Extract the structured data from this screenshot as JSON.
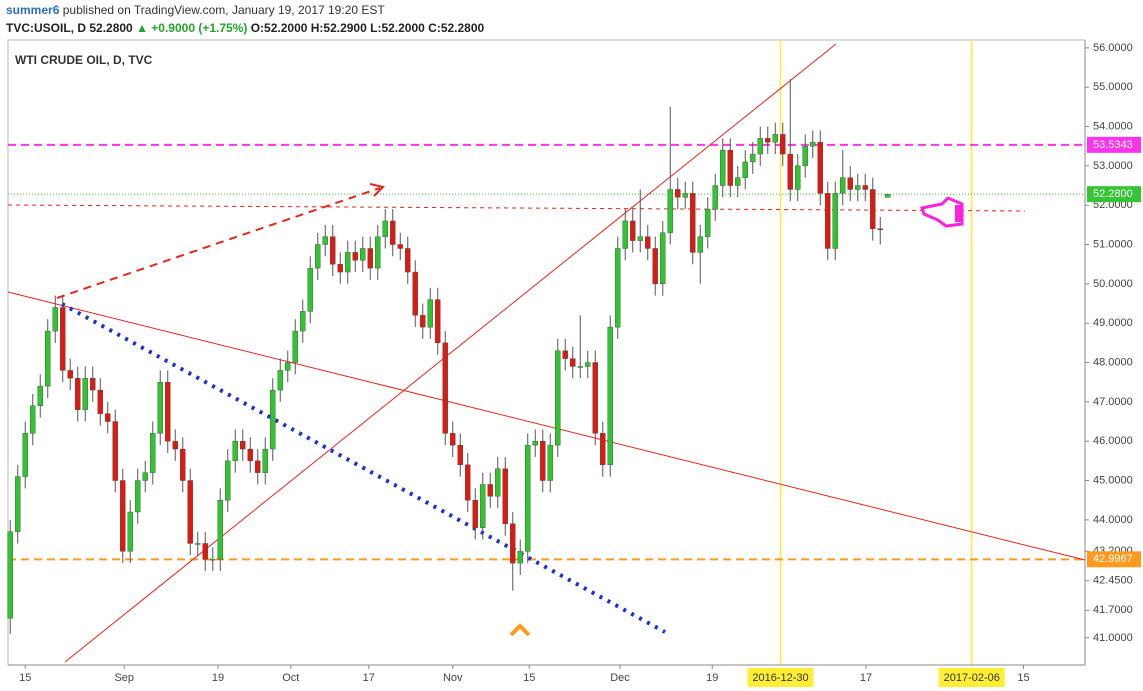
{
  "header": {
    "author": "summer6",
    "published": "published on TradingView.com, January 19, 2017 19:20 EST",
    "symbol": "TVC:USOIL, D",
    "price": "52.2800",
    "change": "▲ +0.9000 (+1.75%)",
    "ohlc": "O:52.2000 H:52.2900 L:52.2000 C:52.2800"
  },
  "chart_data": {
    "type": "candlestick",
    "title": "WTI CRUDE OIL, D, TVC",
    "up_color": "#2fc52f",
    "down_color": "#dd1a12",
    "x": [
      0,
      1,
      2,
      3,
      4,
      5,
      6,
      7,
      8,
      9,
      10,
      11,
      12,
      13,
      14,
      15,
      16,
      17,
      18,
      19,
      20,
      21,
      22,
      23,
      24,
      25,
      26,
      27,
      28,
      29,
      30,
      31,
      32,
      33,
      34,
      35,
      36,
      37,
      38,
      39,
      40,
      41,
      42,
      43,
      44,
      45,
      46,
      47,
      48,
      49,
      50,
      51,
      52,
      53,
      54,
      55,
      56,
      57,
      58,
      59,
      60,
      61,
      62,
      63,
      64,
      65,
      66,
      67,
      68,
      69,
      70,
      71,
      72,
      73,
      74,
      75,
      76,
      77,
      78,
      79,
      80,
      81,
      82,
      83,
      84,
      85,
      86,
      87,
      88,
      89,
      90,
      91,
      92,
      93,
      94,
      95,
      96,
      97,
      98,
      99,
      100,
      101,
      102,
      103,
      104,
      105,
      106,
      107,
      108,
      109,
      110,
      111,
      112,
      113,
      114,
      115,
      116,
      117
    ],
    "open": [
      41.5,
      43.7,
      45.1,
      46.2,
      46.9,
      47.4,
      48.8,
      49.4,
      47.8,
      47.6,
      46.8,
      47.6,
      47.3,
      46.7,
      46.5,
      45.0,
      43.2,
      44.2,
      45.0,
      45.2,
      46.2,
      47.5,
      46.0,
      45.8,
      45.0,
      43.4,
      43.4,
      43.0,
      43.0,
      44.5,
      45.5,
      46.0,
      45.8,
      45.5,
      45.2,
      45.8,
      47.3,
      47.8,
      48.0,
      48.8,
      49.3,
      50.4,
      51.0,
      51.2,
      50.5,
      50.3,
      50.8,
      50.6,
      50.9,
      50.4,
      51.2,
      51.6,
      51.0,
      50.9,
      50.3,
      49.2,
      48.9,
      49.6,
      48.5,
      46.2,
      45.9,
      45.4,
      44.5,
      43.8,
      44.9,
      44.6,
      45.3,
      43.9,
      42.9,
      43.2,
      45.9,
      46.0,
      45.0,
      45.9,
      48.3,
      48.1,
      47.9,
      47.9,
      48.0,
      46.2,
      45.4,
      48.9,
      50.9,
      51.6,
      51.1,
      51.2,
      50.9,
      50.0,
      51.3,
      52.4,
      52.2,
      52.3,
      50.8,
      51.2,
      51.9,
      52.5,
      53.4,
      52.5,
      52.7,
      53.1,
      53.3,
      53.7,
      53.6,
      53.8,
      53.3,
      52.4,
      53.0,
      53.5,
      53.6,
      52.3,
      50.9,
      52.3,
      52.7,
      52.4,
      52.5,
      52.4,
      51.4,
      52.2
    ],
    "high": [
      44.0,
      45.4,
      46.5,
      47.2,
      47.7,
      49.1,
      49.7,
      49.7,
      48.1,
      47.9,
      47.9,
      47.9,
      47.6,
      47.0,
      46.8,
      45.3,
      44.5,
      45.3,
      45.5,
      46.5,
      47.8,
      47.8,
      46.3,
      46.1,
      45.3,
      43.7,
      43.7,
      43.3,
      44.8,
      45.8,
      46.3,
      46.3,
      46.1,
      45.8,
      46.1,
      47.6,
      48.1,
      48.3,
      49.1,
      49.6,
      50.7,
      51.3,
      51.5,
      51.5,
      50.8,
      51.1,
      51.1,
      51.2,
      51.2,
      51.5,
      51.9,
      51.9,
      51.3,
      51.2,
      50.6,
      49.5,
      49.9,
      49.9,
      48.8,
      46.5,
      46.2,
      45.7,
      44.8,
      45.2,
      45.2,
      45.6,
      45.6,
      44.2,
      43.5,
      46.2,
      46.3,
      46.3,
      46.2,
      48.6,
      48.6,
      48.4,
      49.2,
      48.3,
      48.3,
      46.5,
      49.2,
      51.2,
      51.9,
      51.9,
      52.4,
      51.5,
      51.2,
      51.6,
      54.5,
      52.7,
      52.6,
      52.6,
      51.5,
      52.2,
      52.8,
      53.7,
      53.7,
      53.0,
      53.4,
      53.6,
      54.0,
      54.0,
      54.1,
      54.1,
      55.2,
      53.3,
      53.8,
      53.9,
      53.9,
      52.6,
      52.6,
      53.4,
      53.0,
      52.8,
      52.8,
      52.7,
      51.7,
      52.29
    ],
    "low": [
      41.1,
      43.4,
      44.8,
      45.9,
      46.6,
      47.1,
      48.5,
      47.5,
      47.3,
      46.5,
      46.5,
      47.0,
      46.4,
      46.2,
      44.7,
      42.9,
      42.9,
      43.9,
      44.7,
      44.9,
      45.9,
      45.7,
      45.5,
      44.7,
      43.1,
      43.1,
      42.7,
      42.7,
      42.7,
      44.2,
      45.2,
      45.5,
      45.2,
      44.9,
      44.9,
      45.5,
      47.0,
      47.5,
      47.7,
      48.5,
      49.0,
      50.1,
      50.7,
      50.2,
      50.0,
      50.0,
      50.3,
      50.3,
      50.1,
      50.1,
      50.9,
      50.7,
      50.6,
      50.0,
      48.9,
      48.6,
      48.6,
      48.2,
      45.9,
      45.6,
      45.1,
      44.2,
      43.5,
      43.5,
      44.3,
      44.3,
      43.6,
      42.2,
      42.6,
      42.9,
      45.6,
      44.7,
      44.7,
      45.6,
      47.8,
      47.6,
      47.6,
      47.6,
      45.9,
      45.1,
      45.1,
      48.6,
      50.6,
      50.8,
      50.8,
      50.6,
      49.7,
      49.7,
      51.0,
      51.9,
      51.9,
      50.5,
      50.0,
      50.9,
      51.6,
      52.2,
      52.2,
      52.2,
      52.4,
      52.8,
      53.0,
      53.3,
      53.3,
      53.0,
      52.1,
      52.1,
      52.7,
      53.2,
      52.0,
      50.6,
      50.6,
      52.0,
      52.1,
      52.1,
      52.1,
      51.1,
      51.0,
      52.2
    ],
    "close": [
      43.7,
      45.1,
      46.2,
      46.9,
      47.4,
      48.8,
      49.4,
      47.8,
      47.6,
      46.8,
      47.6,
      47.3,
      46.7,
      46.5,
      45.0,
      43.2,
      44.2,
      45.0,
      45.2,
      46.2,
      47.5,
      46.0,
      45.8,
      45.0,
      43.4,
      43.4,
      43.0,
      43.0,
      44.5,
      45.5,
      46.0,
      45.8,
      45.5,
      45.2,
      45.8,
      47.3,
      47.8,
      48.0,
      48.8,
      49.3,
      50.4,
      51.0,
      51.2,
      50.5,
      50.3,
      50.8,
      50.6,
      50.9,
      50.4,
      51.2,
      51.6,
      51.0,
      50.9,
      50.3,
      49.2,
      48.9,
      49.6,
      48.5,
      46.2,
      45.9,
      45.4,
      44.5,
      43.8,
      44.9,
      44.6,
      45.3,
      43.9,
      42.9,
      43.2,
      45.9,
      46.0,
      45.0,
      45.9,
      48.3,
      48.1,
      47.9,
      47.9,
      48.0,
      46.2,
      45.4,
      48.9,
      50.9,
      51.6,
      51.1,
      51.2,
      50.9,
      50.0,
      51.3,
      52.4,
      52.2,
      52.3,
      50.8,
      51.2,
      51.9,
      52.5,
      53.4,
      52.5,
      52.7,
      53.1,
      53.3,
      53.7,
      53.6,
      53.8,
      53.3,
      52.4,
      53.0,
      53.5,
      53.6,
      52.3,
      50.9,
      52.3,
      52.7,
      52.4,
      52.5,
      52.4,
      51.4,
      51.38,
      52.28
    ],
    "xlim": [
      -0.3,
      143.3
    ],
    "ylim": [
      40.31,
      56.2
    ],
    "xticks": [
      {
        "value": 2.0,
        "label": "15"
      },
      {
        "value": 15.2,
        "label": "Sep"
      },
      {
        "value": 27.7,
        "label": "19"
      },
      {
        "value": 37.4,
        "label": "Oct"
      },
      {
        "value": 47.8,
        "label": "17"
      },
      {
        "value": 59.0,
        "label": "Nov"
      },
      {
        "value": 69.2,
        "label": "15"
      },
      {
        "value": 81.3,
        "label": "Dec"
      },
      {
        "value": 93.6,
        "label": "19"
      },
      {
        "value": 114.1,
        "label": "17"
      },
      {
        "value": 135.1,
        "label": "15"
      }
    ],
    "yticks": [
      {
        "value": 56,
        "label": "56.0000"
      },
      {
        "value": 55,
        "label": "55.0000"
      },
      {
        "value": 54,
        "label": "54.0000"
      },
      {
        "value": 53,
        "label": "53.0000"
      },
      {
        "value": 52,
        "label": "52.0000"
      },
      {
        "value": 51,
        "label": "51.0000"
      },
      {
        "value": 50,
        "label": "50.0000"
      },
      {
        "value": 49,
        "label": "49.0000"
      },
      {
        "value": 48,
        "label": "48.0000"
      },
      {
        "value": 47,
        "label": "47.0000"
      },
      {
        "value": 46,
        "label": "46.0000"
      },
      {
        "value": 45,
        "label": "45.0000"
      },
      {
        "value": 44,
        "label": "44.0000"
      },
      {
        "value": 43.2,
        "label": "43.2000"
      },
      {
        "value": 42.45,
        "label": "42.4500"
      },
      {
        "value": 41.7,
        "label": "41.7000"
      },
      {
        "value": 41,
        "label": "41.0000"
      }
    ],
    "vlines": [
      {
        "value": 102.7,
        "label": "2016-12-30",
        "color": "#ffee33"
      },
      {
        "value": 128.2,
        "label": "2017-02-06",
        "color": "#ffee33"
      }
    ],
    "price_lines": [
      {
        "value": 53.5343,
        "label": "53.5343",
        "color": "#ff33ee",
        "style": "dashed"
      },
      {
        "value": 52.28,
        "label": "52.2800",
        "color": "#33c533",
        "style": "dotted"
      },
      {
        "value": 42.9967,
        "label": "42.9967",
        "color": "#ff9a1f",
        "style": "dashed"
      }
    ]
  }
}
